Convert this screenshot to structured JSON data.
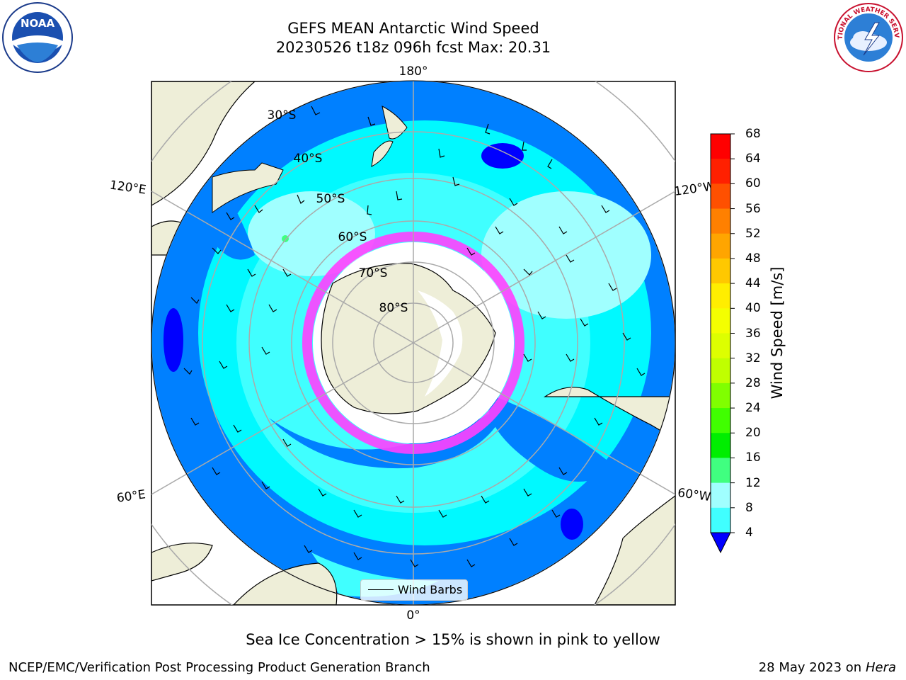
{
  "title": {
    "line1": "GEFS MEAN Antarctic Wind Speed",
    "line2": "20230526 t18z 096h fcst   Max: 20.31"
  },
  "logos": {
    "left": {
      "text": "NOAA",
      "ring_text": "NATIONAL OCEANIC AND ATMOSPHERIC ADMINISTRATION · U.S. DEPARTMENT OF COMMERCE"
    },
    "right": {
      "ring_text": "NATIONAL WEATHER SERVICE"
    }
  },
  "map": {
    "longitude_labels": {
      "top": "180°",
      "bottom": "0°",
      "left_upper": "120°E",
      "left_lower": "60°E",
      "right_upper": "120°W",
      "right_lower": "60°W"
    },
    "latitude_labels": [
      "30°S",
      "40°S",
      "50°S",
      "60°S",
      "70°S",
      "80°S"
    ],
    "legend": {
      "label": "Wind Barbs"
    }
  },
  "colorbar": {
    "label": "Wind Speed [m/s]",
    "ticks": [
      "68",
      "64",
      "60",
      "56",
      "52",
      "48",
      "44",
      "40",
      "36",
      "32",
      "28",
      "24",
      "20",
      "16",
      "12",
      "8",
      "4"
    ],
    "colors": [
      "#ff0000",
      "#ff2000",
      "#ff5000",
      "#ff8000",
      "#ffa500",
      "#ffc800",
      "#ffee00",
      "#f4ff00",
      "#ddff00",
      "#c0ff00",
      "#80ff00",
      "#40ff00",
      "#00ee00",
      "#40ff80",
      "#a0ffff",
      "#40ffff",
      "#00ffff",
      "#0080ff"
    ],
    "extend_color": "#0000ff"
  },
  "annotation": "Sea Ice Concentration > 15% is shown in pink to yellow",
  "footer": {
    "left": "NCEP/EMC/Verification Post Processing Product Generation Branch",
    "right_date": "28 May 2023 on",
    "right_host": "Hera"
  }
}
